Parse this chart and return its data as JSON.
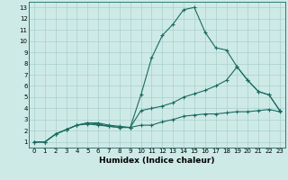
{
  "xlabel": "Humidex (Indice chaleur)",
  "bg_color": "#ceeae7",
  "grid_color": "#aacfcc",
  "line_color": "#1a6b60",
  "xlim": [
    -0.5,
    23.5
  ],
  "ylim": [
    0.5,
    13.5
  ],
  "xticks": [
    0,
    1,
    2,
    3,
    4,
    5,
    6,
    7,
    8,
    9,
    10,
    11,
    12,
    13,
    14,
    15,
    16,
    17,
    18,
    19,
    20,
    21,
    22,
    23
  ],
  "yticks": [
    1,
    2,
    3,
    4,
    5,
    6,
    7,
    8,
    9,
    10,
    11,
    12,
    13
  ],
  "line1_x": [
    0,
    1,
    2,
    3,
    4,
    5,
    6,
    7,
    8,
    9,
    10,
    11,
    12,
    13,
    14,
    15,
    16,
    17,
    18,
    19,
    20,
    21,
    22,
    23
  ],
  "line1_y": [
    1.0,
    1.0,
    1.7,
    2.1,
    2.5,
    2.6,
    2.5,
    2.4,
    2.3,
    2.3,
    2.5,
    2.5,
    2.8,
    3.0,
    3.3,
    3.4,
    3.5,
    3.5,
    3.6,
    3.7,
    3.7,
    3.8,
    3.9,
    3.7
  ],
  "line2_x": [
    0,
    1,
    2,
    3,
    4,
    5,
    6,
    7,
    8,
    9,
    10,
    11,
    12,
    13,
    14,
    15,
    16,
    17,
    18,
    19,
    20,
    21,
    22,
    23
  ],
  "line2_y": [
    1.0,
    1.0,
    1.7,
    2.1,
    2.5,
    2.7,
    2.6,
    2.4,
    2.3,
    2.3,
    5.2,
    8.5,
    10.5,
    11.5,
    12.8,
    13.0,
    10.8,
    9.4,
    9.2,
    7.7,
    6.5,
    5.5,
    5.2,
    3.8
  ],
  "line3_x": [
    0,
    1,
    2,
    3,
    4,
    5,
    6,
    7,
    8,
    9,
    10,
    11,
    12,
    13,
    14,
    15,
    16,
    17,
    18,
    19,
    20,
    21,
    22,
    23
  ],
  "line3_y": [
    1.0,
    1.0,
    1.7,
    2.1,
    2.5,
    2.7,
    2.7,
    2.5,
    2.4,
    2.3,
    3.8,
    4.0,
    4.2,
    4.5,
    5.0,
    5.3,
    5.6,
    6.0,
    6.5,
    7.7,
    6.5,
    5.5,
    5.2,
    3.8
  ]
}
